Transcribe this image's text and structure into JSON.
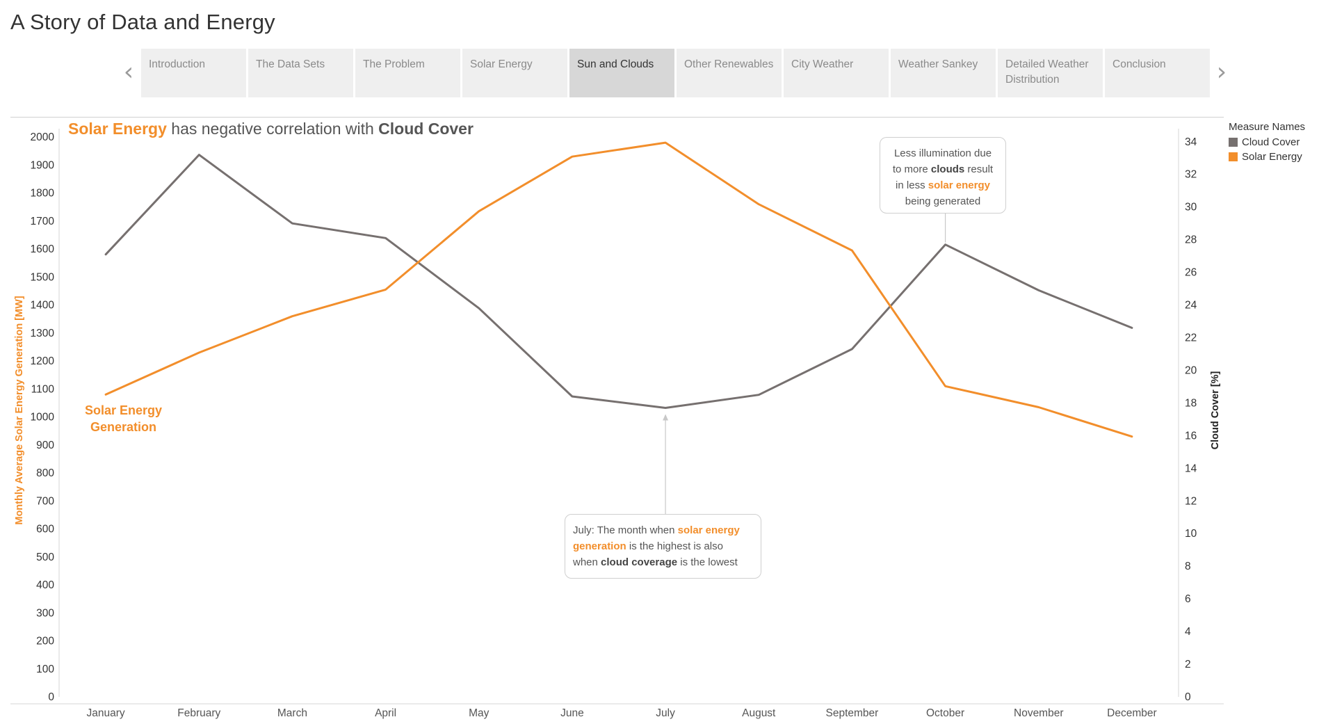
{
  "story": {
    "title": "A Story of Data and Energy",
    "tabs": [
      "Introduction",
      "The Data Sets",
      "The Problem",
      "Solar Energy",
      "Sun and Clouds",
      "Other Renewables",
      "City Weather",
      "Weather Sankey",
      "Detailed Weather Distribution",
      "Conclusion"
    ],
    "active_tab": "Sun and Clouds"
  },
  "colors": {
    "solar": "#f28e2b",
    "cloud": "#76706f",
    "axis": "#d4d4d4"
  },
  "icons": {
    "prev": "chevron-left-icon",
    "next": "chevron-right-icon"
  },
  "chart_data": {
    "type": "line",
    "title_parts": {
      "a": "Solar Energy",
      "b": " has negative correlation with ",
      "c": "Cloud Cover"
    },
    "x": [
      "January",
      "February",
      "March",
      "April",
      "May",
      "June",
      "July",
      "August",
      "September",
      "October",
      "November",
      "December"
    ],
    "series": [
      {
        "name": "Cloud Cover",
        "axis": "right",
        "values": [
          27.1,
          33.2,
          29.0,
          28.1,
          23.8,
          18.4,
          17.7,
          18.5,
          21.3,
          27.7,
          24.9,
          22.6
        ]
      },
      {
        "name": "Solar Energy",
        "axis": "left",
        "values": [
          1080,
          1230,
          1360,
          1455,
          1735,
          1930,
          1980,
          1760,
          1595,
          1110,
          1035,
          930
        ]
      }
    ],
    "ylabel": "Monthly Average Solar Energy Generation [MW]",
    "ylabel_right": "Cloud Cover [%]",
    "ylim": [
      0,
      2030
    ],
    "ylim_right": [
      0,
      34.8
    ],
    "yticks": [
      0,
      100,
      200,
      300,
      400,
      500,
      600,
      700,
      800,
      900,
      1000,
      1100,
      1200,
      1300,
      1400,
      1500,
      1600,
      1700,
      1800,
      1900,
      2000
    ],
    "yticks_right": [
      0,
      2,
      4,
      6,
      8,
      10,
      12,
      14,
      16,
      18,
      20,
      22,
      24,
      26,
      28,
      30,
      32,
      34
    ],
    "legend": {
      "title": "Measure Names",
      "position": "right",
      "items": [
        "Cloud Cover",
        "Solar Energy"
      ]
    },
    "series_label": [
      "Solar Energy",
      "Generation"
    ],
    "annotations": {
      "clouds": {
        "l1": "Less illumination due",
        "l2a": "to more ",
        "l2b": "clouds",
        "l2c": " result",
        "l3a": "in less ",
        "l3b": "solar energy",
        "l4": "being generated"
      },
      "july": {
        "l1a": "July: The month when ",
        "l1b": "solar energy",
        "l2a": "generation",
        "l2b": " is the highest is also",
        "l3a": "when ",
        "l3b": "cloud coverage",
        "l3c": " is the lowest"
      }
    },
    "grid": false
  }
}
